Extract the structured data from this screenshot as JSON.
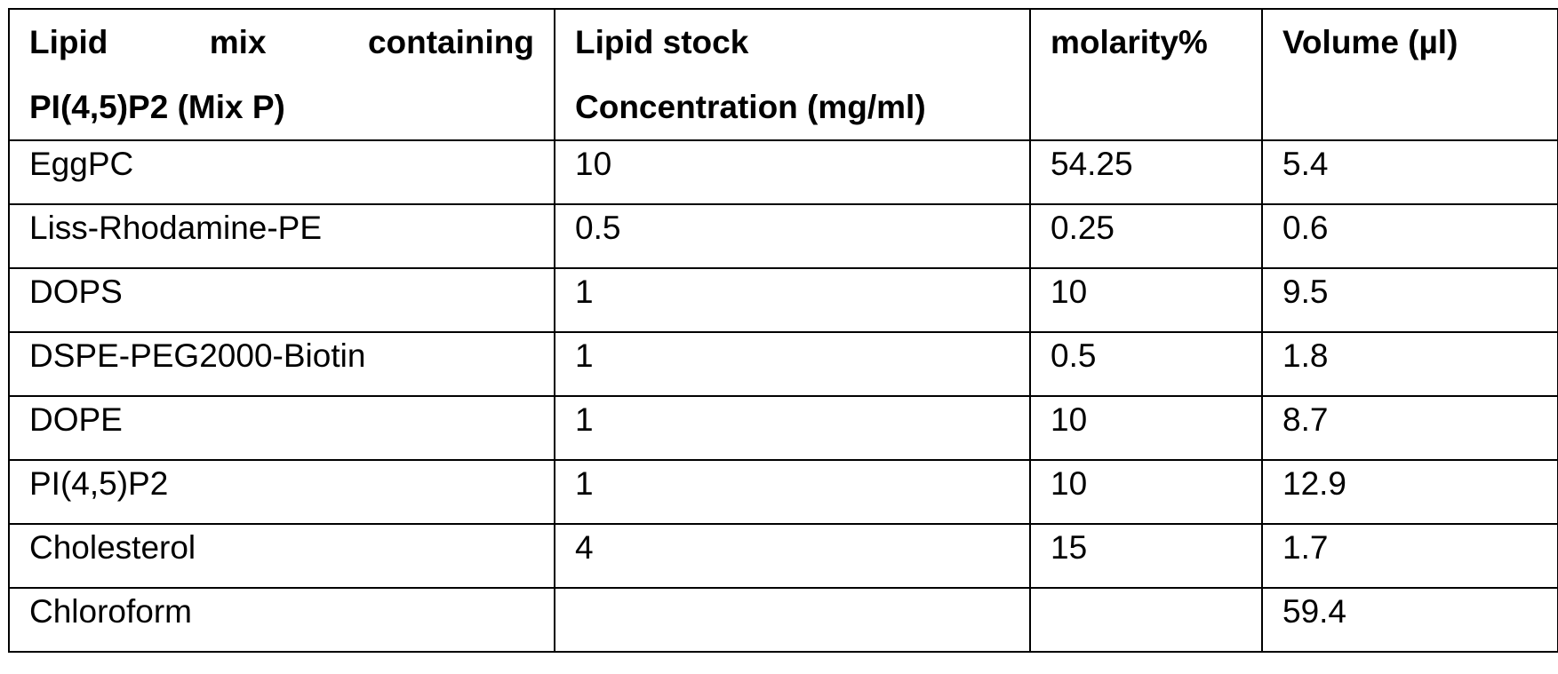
{
  "table": {
    "headers": {
      "col1_line1": "Lipid mix containing",
      "col1_line2": "PI(4,5)P2 (Mix P)",
      "col2_line1": "Lipid stock",
      "col2_line2": "Concentration (mg/ml)",
      "col3": "molarity%",
      "col4": "Volume (µl)"
    },
    "rows": [
      {
        "lipid": "EggPC",
        "stock": "10",
        "molarity": "54.25",
        "volume": "5.4"
      },
      {
        "lipid": "Liss-Rhodamine-PE",
        "stock": "0.5",
        "molarity": "0.25",
        "volume": "0.6"
      },
      {
        "lipid": "DOPS",
        "stock": "1",
        "molarity": "10",
        "volume": "9.5"
      },
      {
        "lipid": "DSPE-PEG2000-Biotin",
        "stock": "1",
        "molarity": "0.5",
        "volume": "1.8"
      },
      {
        "lipid": "DOPE",
        "stock": "1",
        "molarity": "10",
        "volume": "8.7"
      },
      {
        "lipid": "PI(4,5)P2",
        "stock": "1",
        "molarity": "10",
        "volume": "12.9"
      },
      {
        "lipid": "Cholesterol",
        "stock": "4",
        "molarity": "15",
        "volume": "1.7"
      },
      {
        "lipid": "Chloroform",
        "stock": "",
        "molarity": "",
        "volume": "59.4"
      }
    ]
  }
}
